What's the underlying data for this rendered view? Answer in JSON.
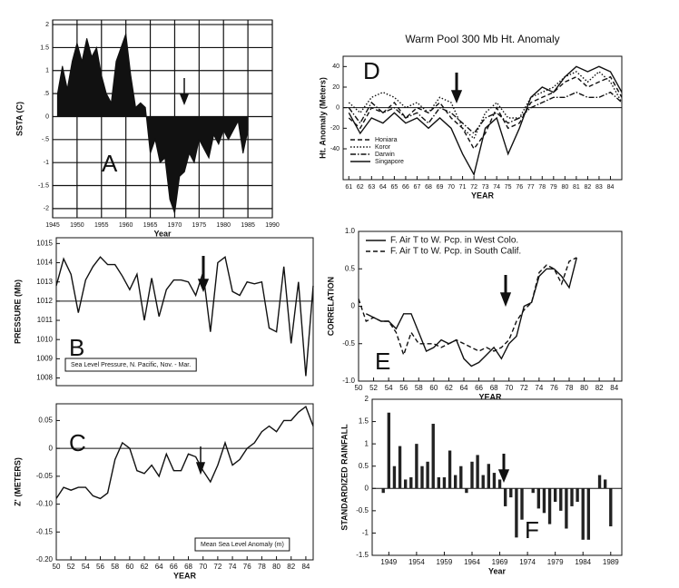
{
  "chart_data": [
    {
      "type": "area",
      "ylabel": "SSTA (C)",
      "xlabel": "Year",
      "panel_label": "A",
      "color": "#111111",
      "grid": true,
      "x": [
        1946,
        1947,
        1948,
        1949,
        1950,
        1951,
        1952,
        1953,
        1954,
        1955,
        1956,
        1957,
        1958,
        1959,
        1960,
        1961,
        1962,
        1963,
        1964,
        1965,
        1966,
        1967,
        1968,
        1969,
        1970,
        1971,
        1972,
        1973,
        1974,
        1975,
        1976,
        1977,
        1978,
        1979,
        1980,
        1981,
        1982,
        1983,
        1984,
        1985
      ],
      "values": [
        0.5,
        1.1,
        0.6,
        1.2,
        1.6,
        1.2,
        1.7,
        1.3,
        1.5,
        0.9,
        0.5,
        0.3,
        1.2,
        1.5,
        1.8,
        0.9,
        0.2,
        0.3,
        0.2,
        -0.8,
        -0.5,
        -1.0,
        -0.9,
        -1.8,
        -2.1,
        -1.3,
        -1.2,
        -0.8,
        -1.0,
        -0.5,
        -0.7,
        -0.9,
        -0.4,
        -0.6,
        -0.3,
        -0.5,
        -0.3,
        -0.1,
        -0.8,
        -0.3
      ],
      "xlim": [
        1945,
        1990
      ],
      "xticks": [
        1945,
        1950,
        1955,
        1960,
        1965,
        1970,
        1975,
        1980,
        1985,
        1990
      ],
      "ylim": [
        -2.2,
        2.1
      ],
      "yticks": [
        2,
        1.5,
        1,
        {
          "value": 0.5,
          "label": ".5"
        },
        0,
        {
          "value": -0.5,
          "label": "-.5"
        },
        -1,
        -1.5,
        -2
      ]
    },
    {
      "type": "line",
      "ylabel": "PRESSURE (Mb)",
      "panel_label": "B",
      "annotation": "Sea Level Pressure, N. Pacific, Nov. - Mar.",
      "color": "#111111",
      "reference_line": 1012,
      "x": [
        50,
        51,
        52,
        53,
        54,
        55,
        56,
        57,
        58,
        59,
        60,
        61,
        62,
        63,
        64,
        65,
        66,
        67,
        68,
        69,
        70,
        71,
        72,
        73,
        74,
        75,
        76,
        77,
        78,
        79,
        80,
        81,
        82,
        83,
        84,
        85
      ],
      "values": [
        1012.8,
        1014.2,
        1013.4,
        1011.4,
        1013.1,
        1013.8,
        1014.3,
        1013.9,
        1013.9,
        1013.3,
        1012.6,
        1013.4,
        1011.0,
        1013.2,
        1011.2,
        1012.6,
        1013.1,
        1013.1,
        1013.0,
        1012.3,
        1013.5,
        1010.4,
        1014.0,
        1014.3,
        1012.5,
        1012.3,
        1013.0,
        1012.9,
        1013.0,
        1010.6,
        1010.4,
        1013.8,
        1009.8,
        1013.0,
        1008.1,
        1012.8
      ],
      "xlim": [
        50,
        85
      ],
      "ylim": [
        1007.6,
        1015.3
      ],
      "yticks": [
        1008,
        1009,
        1010,
        1011,
        1012,
        1013,
        1014,
        1015
      ]
    },
    {
      "type": "line",
      "ylabel": "Z' (METERS)",
      "xlabel": "YEAR",
      "panel_label": "C",
      "annotation": "Mean Sea Level Anomaly (m)",
      "color": "#111111",
      "reference_line": 0,
      "x": [
        50,
        51,
        52,
        53,
        54,
        55,
        56,
        57,
        58,
        59,
        60,
        61,
        62,
        63,
        64,
        65,
        66,
        67,
        68,
        69,
        70,
        71,
        72,
        73,
        74,
        75,
        76,
        77,
        78,
        79,
        80,
        81,
        82,
        83,
        84,
        85
      ],
      "values": [
        -0.09,
        -0.07,
        -0.075,
        -0.07,
        -0.07,
        -0.085,
        -0.09,
        -0.08,
        -0.02,
        0.01,
        0,
        -0.04,
        -0.045,
        -0.03,
        -0.05,
        -0.01,
        -0.04,
        -0.04,
        -0.01,
        -0.015,
        -0.04,
        -0.06,
        -0.03,
        0.01,
        -0.03,
        -0.02,
        0,
        0.01,
        0.03,
        0.04,
        0.03,
        0.05,
        0.05,
        0.065,
        0.075,
        0.04
      ],
      "xlim": [
        50,
        85
      ],
      "xticks": [
        50,
        52,
        54,
        56,
        58,
        60,
        62,
        64,
        66,
        68,
        70,
        72,
        74,
        76,
        78,
        80,
        82,
        84
      ],
      "ylim": [
        -0.2,
        0.08
      ],
      "yticks": [
        0.05,
        0,
        -0.05,
        {
          "value": -0.1,
          "label": "-0.10"
        },
        {
          "value": -0.15,
          "label": "-0.15"
        },
        {
          "value": -0.2,
          "label": "-0.20"
        }
      ]
    },
    {
      "type": "line",
      "title": "Warm Pool 300 Mb Ht. Anomaly",
      "ylabel": "Ht. Anomaly (Meters)",
      "xlabel": "YEAR",
      "panel_label": "D",
      "legend": "lower left",
      "reference_line": 0,
      "x": [
        61,
        62,
        63,
        64,
        65,
        66,
        67,
        68,
        69,
        70,
        71,
        72,
        73,
        74,
        75,
        76,
        77,
        78,
        79,
        80,
        81,
        82,
        83,
        84,
        85
      ],
      "series": [
        {
          "name": "Honiara",
          "color": "#111111",
          "dash": "dashed",
          "values": [
            -10,
            -20,
            0,
            -5,
            5,
            -10,
            0,
            -5,
            5,
            -10,
            -20,
            -40,
            -25,
            0,
            -20,
            -15,
            5,
            10,
            15,
            25,
            30,
            20,
            25,
            30,
            10
          ]
        },
        {
          "name": "Koror",
          "color": "#111111",
          "dash": "dotted",
          "values": [
            5,
            -5,
            10,
            15,
            10,
            0,
            5,
            -5,
            10,
            5,
            -20,
            -30,
            -5,
            5,
            -10,
            -10,
            10,
            15,
            20,
            30,
            35,
            25,
            35,
            25,
            5
          ]
        },
        {
          "name": "Darwin",
          "color": "#111111",
          "dash": "dashdot",
          "values": [
            0,
            -15,
            5,
            -5,
            0,
            -10,
            -5,
            -15,
            0,
            -5,
            -15,
            -25,
            -10,
            -5,
            -15,
            -10,
            0,
            5,
            10,
            10,
            15,
            10,
            10,
            15,
            5
          ]
        },
        {
          "name": "Singapore",
          "color": "#111111",
          "dash": "solid",
          "values": [
            -5,
            -25,
            -10,
            -15,
            -5,
            -15,
            -10,
            -20,
            -10,
            -20,
            -45,
            -65,
            -20,
            -10,
            -45,
            -20,
            10,
            20,
            15,
            30,
            40,
            35,
            40,
            35,
            15
          ]
        }
      ],
      "xlim": [
        60.5,
        85
      ],
      "xticks": [
        61,
        62,
        63,
        64,
        65,
        66,
        67,
        68,
        69,
        70,
        71,
        72,
        73,
        74,
        75,
        76,
        77,
        78,
        79,
        80,
        81,
        82,
        83,
        84
      ],
      "ylim": [
        -70,
        50
      ],
      "yticks": [
        40,
        20,
        0,
        -20,
        -40
      ]
    },
    {
      "type": "line",
      "ylabel": "CORRELATION",
      "xlabel": "YEAR",
      "panel_label": "E",
      "legend": "upper left",
      "x": [
        50,
        51,
        52,
        53,
        54,
        55,
        56,
        57,
        58,
        59,
        60,
        61,
        62,
        63,
        64,
        65,
        66,
        67,
        68,
        69,
        70,
        71,
        72,
        73,
        74,
        75,
        76,
        77,
        78,
        79
      ],
      "series": [
        {
          "name": "F. Air T to W. Pcp. in West Colo.",
          "color": "#111111",
          "dash": "solid",
          "values": [
            null,
            -0.1,
            -0.15,
            -0.2,
            -0.2,
            -0.3,
            -0.1,
            -0.1,
            -0.35,
            -0.6,
            -0.55,
            -0.45,
            -0.5,
            -0.45,
            -0.7,
            -0.8,
            -0.75,
            -0.65,
            -0.55,
            -0.7,
            -0.5,
            -0.4,
            0.0,
            0.05,
            0.4,
            0.5,
            0.5,
            0.4,
            0.25,
            0.65
          ]
        },
        {
          "name": "F. Air T to W. Pcp. in South Calif.",
          "color": "#111111",
          "dash": "dashed",
          "values": [
            0.1,
            -0.2,
            -0.15,
            -0.2,
            -0.2,
            -0.35,
            -0.65,
            -0.35,
            -0.5,
            -0.5,
            -0.5,
            -0.55,
            -0.5,
            -0.45,
            -0.5,
            -0.55,
            -0.6,
            -0.55,
            -0.6,
            -0.55,
            -0.45,
            -0.2,
            -0.05,
            0.05,
            0.45,
            0.55,
            0.5,
            0.3,
            0.6,
            0.65
          ]
        }
      ],
      "xlim": [
        50,
        85
      ],
      "xticks": [
        50,
        52,
        54,
        56,
        58,
        60,
        62,
        64,
        66,
        68,
        70,
        72,
        74,
        76,
        78,
        80,
        82,
        84
      ],
      "ylim": [
        -1,
        1
      ],
      "yticks": [
        {
          "value": 1,
          "label": "1.0"
        },
        0.5,
        0,
        -0.5,
        {
          "value": -1,
          "label": "-1.0"
        }
      ]
    },
    {
      "type": "bar",
      "ylabel": "STANDARDIZED RAINFALL",
      "xlabel": "Year",
      "panel_label": "F",
      "color": "#222222",
      "reference_line": 0,
      "x": [
        1948,
        1949,
        1950,
        1951,
        1952,
        1953,
        1954,
        1955,
        1956,
        1957,
        1958,
        1959,
        1960,
        1961,
        1962,
        1963,
        1964,
        1965,
        1966,
        1967,
        1968,
        1969,
        1970,
        1971,
        1972,
        1973,
        1974,
        1975,
        1976,
        1977,
        1978,
        1979,
        1980,
        1981,
        1982,
        1983,
        1984,
        1985,
        1986,
        1987,
        1988,
        1989
      ],
      "values": [
        -0.1,
        1.7,
        0.5,
        0.95,
        0.2,
        0.25,
        1.0,
        0.5,
        0.6,
        1.45,
        0.25,
        0.25,
        0.85,
        0.3,
        0.5,
        -0.1,
        0.6,
        0.75,
        0.3,
        0.55,
        0.35,
        0.2,
        -0.4,
        -0.2,
        -1.1,
        -0.7,
        0.0,
        -0.1,
        -0.45,
        -0.55,
        -0.8,
        -0.3,
        -0.5,
        -0.9,
        -0.4,
        -0.3,
        -1.15,
        -1.15,
        0.0,
        0.3,
        0.2,
        -0.85
      ],
      "xlim": [
        1946,
        1991
      ],
      "xticks": [
        1949,
        1954,
        1959,
        1964,
        1969,
        1974,
        1979,
        1984,
        1989
      ],
      "ylim": [
        -1.5,
        2
      ],
      "yticks": [
        2,
        1.5,
        1,
        0.5,
        0,
        -0.5,
        -1,
        -1.5
      ]
    }
  ]
}
